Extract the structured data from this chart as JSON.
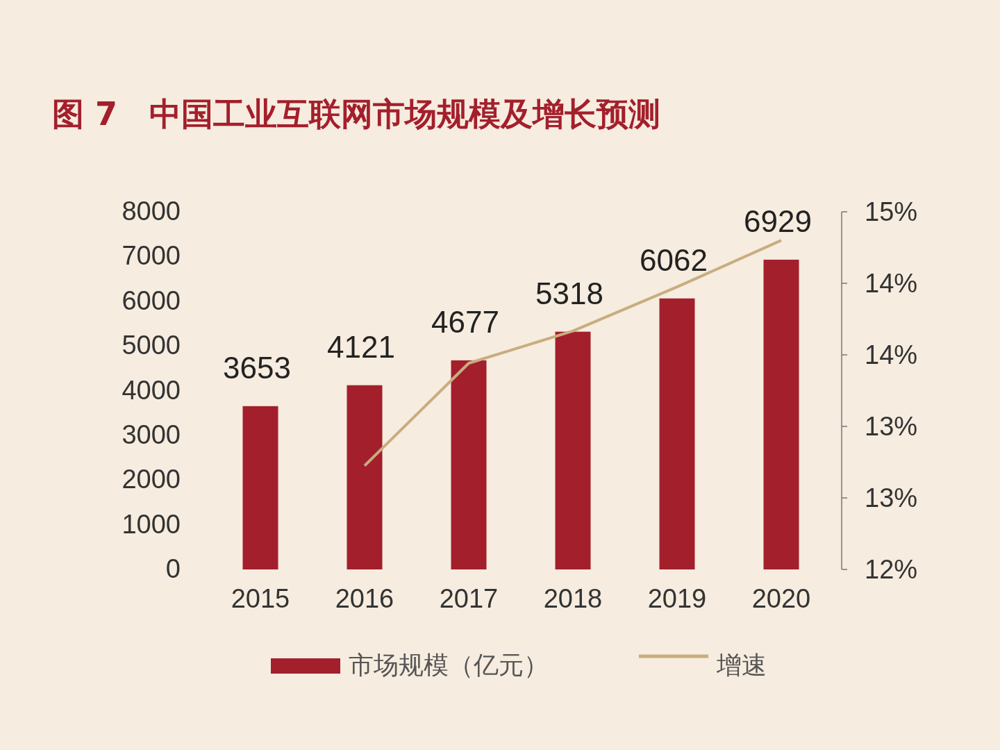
{
  "chart_data": {
    "type": "bar",
    "title": "图 7　中国工业互联网市场规模及增长预测",
    "categories": [
      "2015",
      "2016",
      "2017",
      "2018",
      "2019",
      "2020"
    ],
    "series": [
      {
        "name": "市场规模（亿元）",
        "color": "#a31f2c",
        "values": [
          3653,
          4121,
          4677,
          5318,
          6062,
          6929
        ],
        "value_labels": [
          "3653",
          "4121",
          "4677",
          "5318",
          "6062",
          "6929"
        ]
      },
      {
        "name": "增速",
        "type": "line",
        "axis": "y2",
        "color": "#c8ad7f",
        "values": [
          null,
          12.87,
          13.73,
          14.0,
          14.37,
          14.76
        ]
      }
    ],
    "ylim": [
      0,
      8000
    ],
    "yticks": [
      0,
      1000,
      2000,
      3000,
      4000,
      5000,
      6000,
      7000,
      8000
    ],
    "y2lim": [
      12,
      15
    ],
    "y2ticks": [
      {
        "value": 12,
        "label": "12%"
      },
      {
        "value": 12.6,
        "label": "13%"
      },
      {
        "value": 13.2,
        "label": "13%"
      },
      {
        "value": 13.8,
        "label": "14%"
      },
      {
        "value": 14.4,
        "label": "14%"
      },
      {
        "value": 15,
        "label": "15%"
      }
    ],
    "legend": "bottom"
  }
}
